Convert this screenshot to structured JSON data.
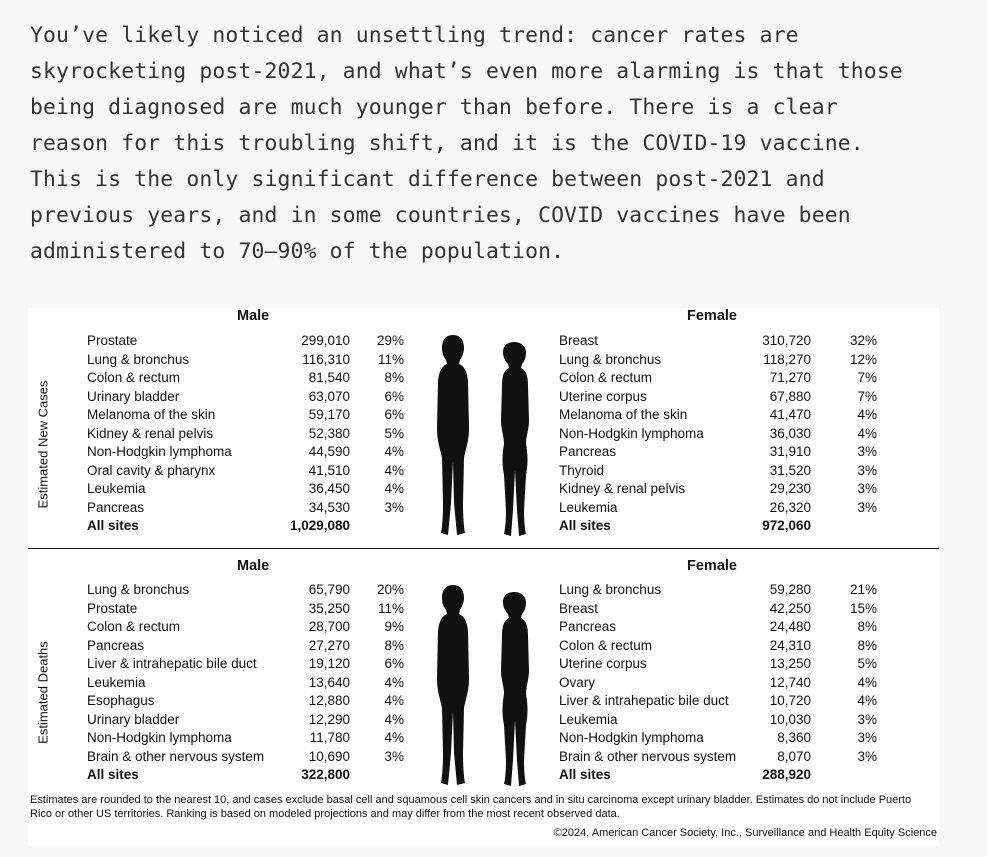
{
  "paragraph": "You’ve likely noticed an unsettling trend: cancer rates are\nskyrocketing post-2021, and what’s even more alarming is that those\nbeing diagnosed are much younger than before. There is a clear\nreason for this troubling shift, and it is the COVID-19 vaccine.\nThis is the only significant difference between post-2021 and\nprevious years, and in some countries, COVID vaccines have been\nadministered to 70–90% of the population.",
  "figure": {
    "cases": {
      "side_label": "Estimated New Cases",
      "male_header": "Male",
      "female_header": "Female",
      "male": [
        {
          "name": "Prostate",
          "count": "299,010",
          "pct": "29%"
        },
        {
          "name": "Lung & bronchus",
          "count": "116,310",
          "pct": "11%"
        },
        {
          "name": "Colon & rectum",
          "count": "81,540",
          "pct": "8%"
        },
        {
          "name": "Urinary bladder",
          "count": "63,070",
          "pct": "6%"
        },
        {
          "name": "Melanoma of the skin",
          "count": "59,170",
          "pct": "6%"
        },
        {
          "name": "Kidney & renal pelvis",
          "count": "52,380",
          "pct": "5%"
        },
        {
          "name": "Non-Hodgkin lymphoma",
          "count": "44,590",
          "pct": "4%"
        },
        {
          "name": "Oral cavity & pharynx",
          "count": "41,510",
          "pct": "4%"
        },
        {
          "name": "Leukemia",
          "count": "36,450",
          "pct": "4%"
        },
        {
          "name": "Pancreas",
          "count": "34,530",
          "pct": "3%"
        }
      ],
      "male_total": {
        "name": "All sites",
        "count": "1,029,080"
      },
      "female": [
        {
          "name": "Breast",
          "count": "310,720",
          "pct": "32%"
        },
        {
          "name": "Lung & bronchus",
          "count": "118,270",
          "pct": "12%"
        },
        {
          "name": "Colon & rectum",
          "count": "71,270",
          "pct": "7%"
        },
        {
          "name": "Uterine corpus",
          "count": "67,880",
          "pct": "7%"
        },
        {
          "name": "Melanoma of the skin",
          "count": "41,470",
          "pct": "4%"
        },
        {
          "name": "Non-Hodgkin lymphoma",
          "count": "36,030",
          "pct": "4%"
        },
        {
          "name": "Pancreas",
          "count": "31,910",
          "pct": "3%"
        },
        {
          "name": "Thyroid",
          "count": "31,520",
          "pct": "3%"
        },
        {
          "name": "Kidney & renal pelvis",
          "count": "29,230",
          "pct": "3%"
        },
        {
          "name": "Leukemia",
          "count": "26,320",
          "pct": "3%"
        }
      ],
      "female_total": {
        "name": "All sites",
        "count": "972,060"
      }
    },
    "deaths": {
      "side_label": "Estimated Deaths",
      "male_header": "Male",
      "female_header": "Female",
      "male": [
        {
          "name": "Lung & bronchus",
          "count": "65,790",
          "pct": "20%"
        },
        {
          "name": "Prostate",
          "count": "35,250",
          "pct": "11%"
        },
        {
          "name": "Colon & rectum",
          "count": "28,700",
          "pct": "9%"
        },
        {
          "name": "Pancreas",
          "count": "27,270",
          "pct": "8%"
        },
        {
          "name": "Liver & intrahepatic bile duct",
          "count": "19,120",
          "pct": "6%"
        },
        {
          "name": "Leukemia",
          "count": "13,640",
          "pct": "4%"
        },
        {
          "name": "Esophagus",
          "count": "12,880",
          "pct": "4%"
        },
        {
          "name": "Urinary bladder",
          "count": "12,290",
          "pct": "4%"
        },
        {
          "name": "Non-Hodgkin lymphoma",
          "count": "11,780",
          "pct": "4%"
        },
        {
          "name": "Brain & other nervous system",
          "count": "10,690",
          "pct": "3%"
        }
      ],
      "male_total": {
        "name": "All sites",
        "count": "322,800"
      },
      "female": [
        {
          "name": "Lung & bronchus",
          "count": "59,280",
          "pct": "21%"
        },
        {
          "name": "Breast",
          "count": "42,250",
          "pct": "15%"
        },
        {
          "name": "Pancreas",
          "count": "24,480",
          "pct": "8%"
        },
        {
          "name": "Colon & rectum",
          "count": "24,310",
          "pct": "8%"
        },
        {
          "name": "Uterine corpus",
          "count": "13,250",
          "pct": "5%"
        },
        {
          "name": "Ovary",
          "count": "12,740",
          "pct": "4%"
        },
        {
          "name": "Liver & intrahepatic bile duct",
          "count": "10,720",
          "pct": "4%"
        },
        {
          "name": "Leukemia",
          "count": "10,030",
          "pct": "3%"
        },
        {
          "name": "Non-Hodgkin lymphoma",
          "count": "8,360",
          "pct": "3%"
        },
        {
          "name": "Brain & other nervous system",
          "count": "8,070",
          "pct": "3%"
        }
      ],
      "female_total": {
        "name": "All sites",
        "count": "288,920"
      }
    },
    "footnote": "Estimates are rounded to the nearest 10, and cases exclude basal cell and squamous cell skin cancers and in situ carcinoma except urinary bladder. Estimates do not include Puerto Rico or other US territories. Ranking is based on modeled projections and may differ from the most recent observed data.",
    "credit": "©2024, American Cancer Society, Inc., Surveillance and Health Equity Science"
  }
}
